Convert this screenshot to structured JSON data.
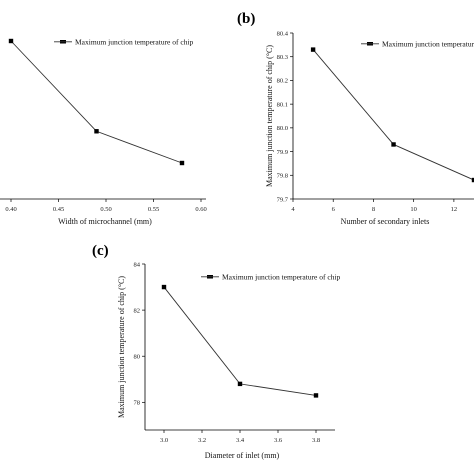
{
  "chart_data": [
    {
      "type": "line",
      "panel_label": "",
      "x": [
        0.4,
        0.49,
        0.58
      ],
      "series": [
        {
          "name": "Maximum junction temperature of chip",
          "values": [
            null,
            null,
            null
          ]
        }
      ],
      "xlabel": "Width of microchannel (mm)",
      "ylabel": "",
      "xlim": [
        0.38,
        0.6
      ],
      "xticks": [
        "0.40",
        "0.45",
        "0.50",
        "0.55",
        "0.60"
      ],
      "yticks": [],
      "rel_values": [
        1.0,
        0.26,
        0.0
      ]
    },
    {
      "type": "line",
      "panel_label": "(b)",
      "x": [
        5,
        9,
        13
      ],
      "series": [
        {
          "name": "Maximum junction temperature",
          "values": [
            80.33,
            79.93,
            79.78
          ]
        }
      ],
      "xlabel": "Number of secondary inlets",
      "ylabel": "Maximum junction temperature of chip (°C)",
      "xlim": [
        4,
        13
      ],
      "ylim": [
        79.7,
        80.4
      ],
      "xticks": [
        "4",
        "6",
        "8",
        "10",
        "12"
      ],
      "yticks": [
        "79.7",
        "79.8",
        "79.9",
        "80.0",
        "80.1",
        "80.2",
        "80.3",
        "80.4"
      ]
    },
    {
      "type": "line",
      "panel_label": "(c)",
      "x": [
        3.0,
        3.4,
        3.8
      ],
      "series": [
        {
          "name": "Maximum junction temperature of chip",
          "values": [
            83.0,
            78.8,
            78.3
          ]
        }
      ],
      "xlabel": "Diameter of inlet (mm)",
      "ylabel": "Maximum junction temperature of chip (°C)",
      "xlim": [
        2.9,
        3.9
      ],
      "ylim": [
        76.8,
        84.0
      ],
      "xticks": [
        "3.0",
        "3.2",
        "3.4",
        "3.6",
        "3.8"
      ],
      "yticks": [
        "78",
        "80",
        "82",
        "84"
      ]
    }
  ]
}
